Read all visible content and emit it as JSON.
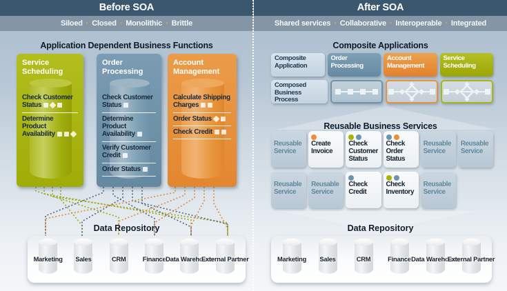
{
  "colors": {
    "green": "#a8b400",
    "blue": "#6e94ad",
    "orange": "#e8913a",
    "yellow_dot": "#d9b62f"
  },
  "left_panel": {
    "header": "Before SOA",
    "subtitle_words": [
      "Siloed",
      "Closed",
      "Monolithic",
      "Brittle"
    ],
    "section_title": "Application Dependent Business Functions",
    "columns": [
      {
        "title": "Service Scheduling",
        "color": "green",
        "items": [
          {
            "text": "Check Customer Status",
            "icons": [
              "sq",
              "di",
              "sq"
            ]
          },
          {
            "text": "Determine Product Availability",
            "icons": [
              "sq",
              "sq",
              "di"
            ]
          }
        ]
      },
      {
        "title": "Order Processing",
        "color": "blue",
        "items": [
          {
            "text": "Check Customer Status",
            "icons": [
              "sq"
            ]
          },
          {
            "text": "Determine Product Availability",
            "icons": [
              "sq"
            ]
          },
          {
            "text": "Verify Customer Credit",
            "icons": [
              "sq"
            ]
          },
          {
            "text": "Order Status",
            "icons": [
              "sq"
            ]
          }
        ]
      },
      {
        "title": "Account Management",
        "color": "orange",
        "items": [
          {
            "text": "Calculate Shipping Charges",
            "icons": [
              "sq",
              "sq"
            ]
          },
          {
            "text": "Order Status",
            "icons": [
              "di",
              "sq"
            ]
          },
          {
            "text": "Check Credit",
            "icons": [
              "sq",
              "sq"
            ]
          }
        ]
      }
    ],
    "repository": {
      "title": "Data Repository",
      "databases": [
        "Marketing",
        "Sales",
        "CRM",
        "Finance",
        "Data Warehouse",
        "External Partner"
      ]
    }
  },
  "right_panel": {
    "header": "After SOA",
    "subtitle_words": [
      "Shared services",
      "Collaborative",
      "Interoperable",
      "Integrated"
    ],
    "composite": {
      "title": "Composite Applications",
      "row1": [
        {
          "label": "Composite Application",
          "style": "light"
        },
        {
          "label": "Order Processing",
          "style": "blue"
        },
        {
          "label": "Account Management",
          "style": "orange"
        },
        {
          "label": "Service Scheduling",
          "style": "green"
        }
      ],
      "row2": [
        {
          "label": "Composed Business Process",
          "style": "light"
        },
        {
          "icon": "process-chain",
          "style": "chain"
        },
        {
          "icon": "process-flow",
          "style": "oflow"
        },
        {
          "icon": "process-flow",
          "style": "gflow"
        }
      ]
    },
    "services": {
      "title": "Reusable Business Services",
      "row1": [
        {
          "label": "Reusable Service",
          "style": "muted",
          "dots": []
        },
        {
          "label": "Create Invoice",
          "style": "active",
          "dots": [
            "orange"
          ]
        },
        {
          "label": "Check Customer Status",
          "style": "active",
          "dots": [
            "green",
            "blue"
          ]
        },
        {
          "label": "Check Order Status",
          "style": "active",
          "dots": [
            "blue",
            "orange"
          ]
        },
        {
          "label": "Reusable Service",
          "style": "muted",
          "dots": []
        },
        {
          "label": "Reusable Service",
          "style": "muted",
          "dots": []
        }
      ],
      "row2": [
        {
          "label": "Reusable Service",
          "style": "muted",
          "dots": []
        },
        {
          "label": "Reusable Service",
          "style": "muted",
          "dots": []
        },
        {
          "label": "Check Credit",
          "style": "active",
          "dots": [
            "blue"
          ]
        },
        {
          "label": "Check Inventory",
          "style": "active",
          "dots": [
            "green",
            "blue"
          ]
        },
        {
          "label": "Reusable Service",
          "style": "muted",
          "dots": []
        }
      ]
    },
    "repository": {
      "title": "Data Repository",
      "databases": [
        "Marketing",
        "Sales",
        "CRM",
        "Finance",
        "Data Warehouse",
        "External Partner"
      ]
    }
  }
}
